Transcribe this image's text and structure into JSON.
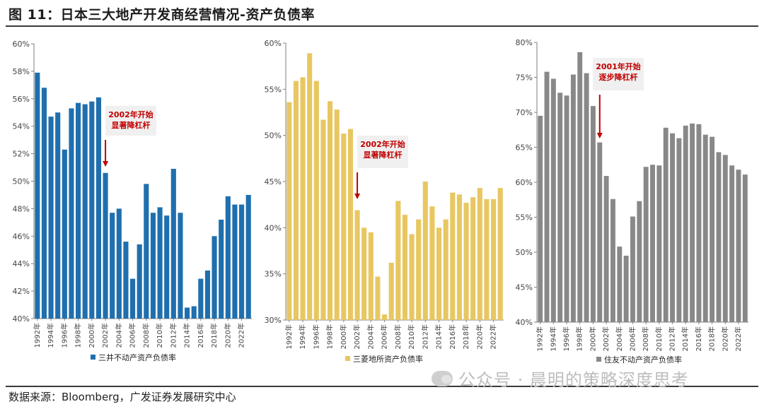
{
  "figure": {
    "title": "图 11：日本三大地产开发商经营情况-资产负债率",
    "source": "数据来源：Bloomberg，广发证券发展研究中心",
    "watermark": "公众号 · 晨明的策略深度思考"
  },
  "colors": {
    "mitsui": "#1f6fae",
    "mitsubishi": "#e8c762",
    "sumitomo": "#888888",
    "annotation": "#c00000",
    "annotation_box": "#f0f0f0"
  },
  "chart_data": [
    {
      "type": "bar",
      "title": "",
      "xlabel": "",
      "ylabel": "",
      "ylim": [
        40,
        60
      ],
      "yticks": [
        40,
        42,
        44,
        46,
        48,
        50,
        52,
        54,
        56,
        58,
        60
      ],
      "ytick_suffix": "%",
      "x_tick_labels": [
        "1992年",
        "1994年",
        "1996年",
        "1998年",
        "2000年",
        "2002年",
        "2004年",
        "2006年",
        "2008年",
        "2010年",
        "2012年",
        "2014年",
        "2016年",
        "2018年",
        "2020年",
        "2022年"
      ],
      "categories": [
        "1992",
        "1993",
        "1994",
        "1995",
        "1996",
        "1997",
        "1998",
        "1999",
        "2000",
        "2001",
        "2002",
        "2003",
        "2004",
        "2005",
        "2006",
        "2007",
        "2008",
        "2009",
        "2010",
        "2011",
        "2012",
        "2013",
        "2014",
        "2015",
        "2016",
        "2017",
        "2018",
        "2019",
        "2020",
        "2021",
        "2022",
        "2023"
      ],
      "series": [
        {
          "name": "三井不动产资产负债率",
          "color": "#1f6fae",
          "values": [
            57.9,
            56.8,
            54.7,
            55.0,
            52.3,
            55.3,
            55.7,
            55.6,
            55.8,
            56.1,
            50.6,
            47.7,
            48.0,
            45.6,
            42.9,
            45.4,
            49.8,
            47.7,
            48.1,
            47.5,
            50.9,
            47.7,
            40.8,
            40.9,
            42.9,
            43.5,
            46.0,
            47.2,
            48.9,
            48.3,
            48.3,
            49.0
          ]
        }
      ],
      "legend": "bottom",
      "annotation": {
        "lines": [
          "2002年开始",
          "显著降杠杆"
        ],
        "at": "2002"
      }
    },
    {
      "type": "bar",
      "title": "",
      "xlabel": "",
      "ylabel": "",
      "ylim": [
        30,
        60
      ],
      "yticks": [
        30,
        35,
        40,
        45,
        50,
        55,
        60
      ],
      "ytick_suffix": "%",
      "x_tick_labels": [
        "1992年",
        "1994年",
        "1996年",
        "1998年",
        "2000年",
        "2002年",
        "2004年",
        "2006年",
        "2008年",
        "2010年",
        "2012年",
        "2014年",
        "2016年",
        "2018年",
        "2020年",
        "2022年"
      ],
      "categories": [
        "1992",
        "1993",
        "1994",
        "1995",
        "1996",
        "1997",
        "1998",
        "1999",
        "2000",
        "2001",
        "2002",
        "2003",
        "2004",
        "2005",
        "2006",
        "2007",
        "2008",
        "2009",
        "2010",
        "2011",
        "2012",
        "2013",
        "2014",
        "2015",
        "2016",
        "2017",
        "2018",
        "2019",
        "2020",
        "2021",
        "2022",
        "2023"
      ],
      "series": [
        {
          "name": "三菱地所资产负债率",
          "color": "#e8c762",
          "values": [
            53.6,
            55.9,
            56.3,
            58.9,
            55.9,
            51.7,
            53.7,
            52.8,
            50.2,
            50.7,
            41.9,
            40.0,
            39.5,
            34.7,
            30.6,
            36.2,
            42.9,
            41.4,
            39.3,
            40.9,
            45.0,
            42.3,
            40.0,
            40.9,
            43.8,
            43.6,
            42.7,
            43.3,
            44.3,
            43.1,
            43.1,
            44.3
          ]
        }
      ],
      "legend": "bottom",
      "annotation": {
        "lines": [
          "2002年开始",
          "显著降杠杆"
        ],
        "at": "2002"
      }
    },
    {
      "type": "bar",
      "title": "",
      "xlabel": "",
      "ylabel": "",
      "ylim": [
        40,
        80
      ],
      "yticks": [
        40,
        45,
        50,
        55,
        60,
        65,
        70,
        75,
        80
      ],
      "ytick_suffix": "%",
      "x_tick_labels": [
        "1992年",
        "1994年",
        "1996年",
        "1998年",
        "2000年",
        "2002年",
        "2004年",
        "2006年",
        "2008年",
        "2010年",
        "2012年",
        "2014年",
        "2016年",
        "2018年",
        "2020年",
        "2022年"
      ],
      "categories": [
        "1992",
        "1993",
        "1994",
        "1995",
        "1996",
        "1997",
        "1998",
        "1999",
        "2000",
        "2001",
        "2002",
        "2003",
        "2004",
        "2005",
        "2006",
        "2007",
        "2008",
        "2009",
        "2010",
        "2011",
        "2012",
        "2013",
        "2014",
        "2015",
        "2016",
        "2017",
        "2018",
        "2019",
        "2020",
        "2021",
        "2022",
        "2023"
      ],
      "series": [
        {
          "name": "住友不动产资产负债率",
          "color": "#888888",
          "values": [
            69.5,
            75.8,
            74.8,
            72.8,
            72.4,
            75.4,
            78.6,
            75.6,
            70.9,
            65.7,
            60.9,
            57.6,
            50.8,
            49.5,
            55.1,
            57.3,
            62.2,
            62.5,
            62.4,
            67.8,
            67.0,
            66.3,
            68.1,
            68.4,
            68.3,
            66.8,
            66.5,
            64.3,
            63.9,
            62.4,
            61.8,
            61.1
          ]
        }
      ],
      "legend": "bottom",
      "annotation": {
        "lines": [
          "2001年开始",
          "逐步降杠杆"
        ],
        "at": "2001"
      }
    }
  ]
}
